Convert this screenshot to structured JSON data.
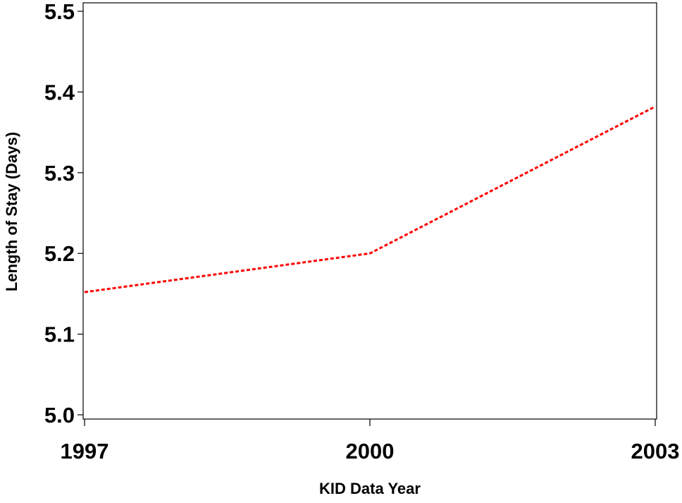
{
  "chart_data": {
    "type": "line",
    "title": "",
    "xlabel": "KID Data Year",
    "ylabel": "Length of Stay (Days)",
    "x": [
      1997,
      2000,
      2003
    ],
    "x_tick_labels": [
      "1997",
      "2000",
      "2003"
    ],
    "xlim": [
      1997,
      2003
    ],
    "ylim": [
      5.0,
      5.5
    ],
    "y_ticks": [
      5.0,
      5.1,
      5.2,
      5.3,
      5.4,
      5.5
    ],
    "y_tick_labels": [
      "5.0",
      "5.1",
      "5.2",
      "5.3",
      "5.4",
      "5.5"
    ],
    "grid": false,
    "legend": "none",
    "series": [
      {
        "values": [
          5.152,
          5.2,
          5.382
        ],
        "color": "#ff0000",
        "line_style": "dashed"
      }
    ]
  }
}
